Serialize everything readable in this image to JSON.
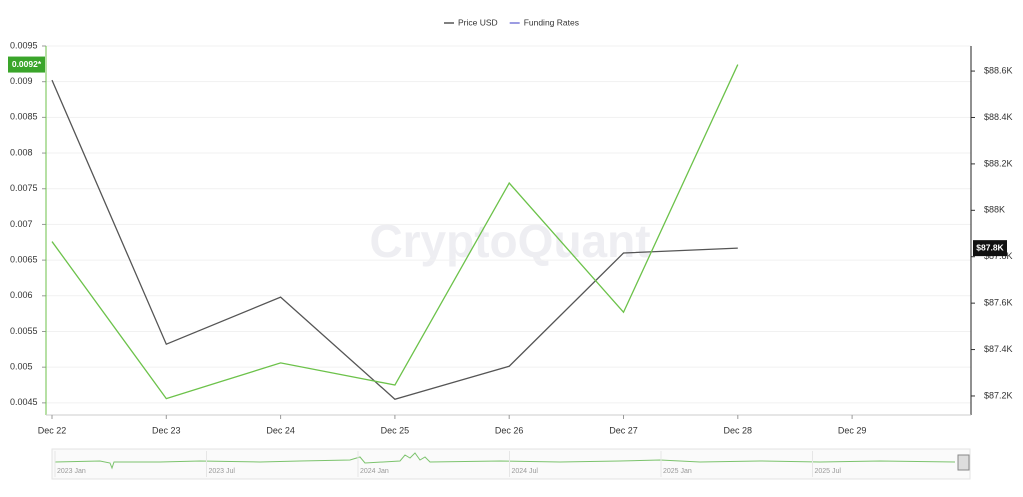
{
  "chart_data": {
    "type": "line",
    "watermark": "CryptoQuant",
    "categories": [
      "Dec 22",
      "Dec 23",
      "Dec 24",
      "Dec 25",
      "Dec 26",
      "Dec 27",
      "Dec 28",
      "Dec 29"
    ],
    "series": [
      {
        "name": "Price USD",
        "color": "#555555",
        "axis": "y2",
        "values": [
          88561,
          87423,
          87626,
          87186,
          87328,
          87816,
          87837,
          null
        ],
        "current_label": "$87.8K",
        "current_color": "#111111"
      },
      {
        "name": "Funding Rates",
        "color": "#6cc24a",
        "legend_color": "#7b7bd8",
        "values": [
          0.00676,
          0.00456,
          0.00506,
          0.00475,
          0.00758,
          0.00577,
          0.00924,
          null
        ],
        "current_label": "0.0092*",
        "current_color": "#3aa52a"
      }
    ],
    "ylim": [
      0.00433,
      0.0095
    ],
    "yticks": [
      0.0095,
      0.009,
      0.0085,
      0.008,
      0.0075,
      0.007,
      0.0065,
      0.006,
      0.0055,
      0.005,
      0.0045
    ],
    "y2lim": [
      87118,
      88708
    ],
    "y2ticks": [
      {
        "value": 88600,
        "label": "$88.6K"
      },
      {
        "value": 88400,
        "label": "$88.4K"
      },
      {
        "value": 88200,
        "label": "$88.2K"
      },
      {
        "value": 88000,
        "label": "$88K"
      },
      {
        "value": 87800,
        "label": "$87.8K"
      },
      {
        "value": 87600,
        "label": "$87.6K"
      },
      {
        "value": 87400,
        "label": "$87.4K"
      },
      {
        "value": 87200,
        "label": "$87.2K"
      }
    ],
    "grid": true,
    "legend": "top",
    "navigator_labels": [
      "2023 Jan",
      "2023 Jul",
      "2024 Jan",
      "2024 Jul",
      "2025 Jan",
      "2025 Jul"
    ]
  }
}
